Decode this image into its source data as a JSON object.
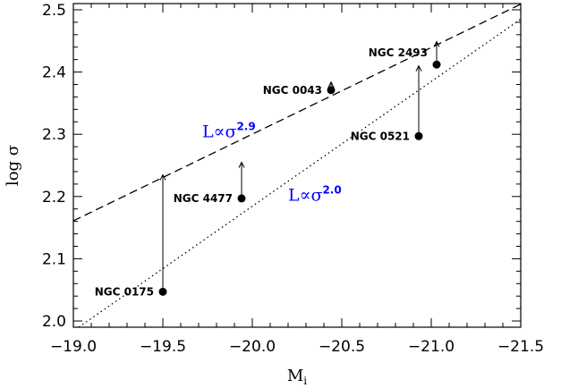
{
  "chart_data": {
    "type": "scatter",
    "title": "",
    "xlabel": "M",
    "xlabel_sub": "i",
    "ylabel": "log σ",
    "xlim": [
      -19.0,
      -21.5
    ],
    "ylim": [
      1.99,
      2.51
    ],
    "xticks": [
      -19.0,
      -19.5,
      -20.0,
      -20.5,
      -21.0,
      -21.5
    ],
    "xtick_labels": [
      "−19.0",
      "−19.5",
      "−20.0",
      "−20.5",
      "−21.0",
      "−21.5"
    ],
    "yticks": [
      2.0,
      2.1,
      2.2,
      2.3,
      2.4,
      2.5
    ],
    "ytick_labels": [
      "2.0",
      "2.1",
      "2.2",
      "2.3",
      "2.4",
      "2.5"
    ],
    "grid": false,
    "points": [
      {
        "name": "NGC 0175",
        "x": -19.5,
        "y": 2.047,
        "arrow_to": 2.235
      },
      {
        "name": "NGC 4477",
        "x": -19.94,
        "y": 2.197,
        "arrow_to": 2.255
      },
      {
        "name": "NGC 0043",
        "x": -20.44,
        "y": 2.371,
        "arrow_to": 2.384
      },
      {
        "name": "NGC 0521",
        "x": -20.93,
        "y": 2.297,
        "arrow_to": 2.41
      },
      {
        "name": "NGC 2493",
        "x": -21.03,
        "y": 2.412,
        "arrow_to": 2.449
      }
    ],
    "fits": [
      {
        "style": "dashed",
        "color": "#000000",
        "x": [
          -19.0,
          -21.5
        ],
        "y": [
          2.161,
          2.509
        ]
      },
      {
        "style": "dotted",
        "color": "#000000",
        "x": [
          -19.03,
          -21.5
        ],
        "y": [
          1.99,
          2.485
        ]
      }
    ],
    "annotations": [
      {
        "base": "L∝σ",
        "exponent": "2.9",
        "color": "#0000ff",
        "x": -19.72,
        "y": 2.295
      },
      {
        "base": "L∝σ",
        "exponent": "2.0",
        "color": "#0000ff",
        "x": -20.2,
        "y": 2.193
      }
    ]
  }
}
